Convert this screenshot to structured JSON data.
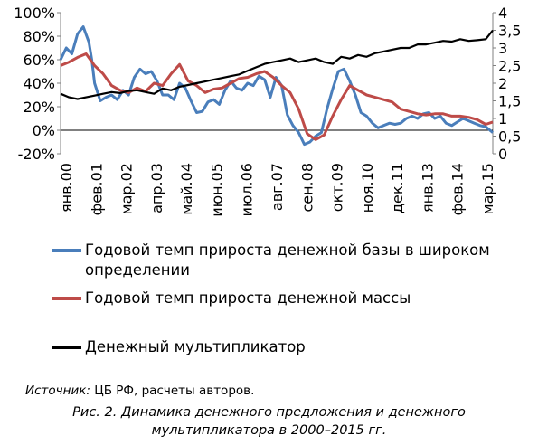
{
  "chart_data": {
    "type": "line",
    "title": "",
    "xlabel": "",
    "ylabel": "",
    "y_left_lim": [
      -20,
      100
    ],
    "y_left_ticks": [
      "100%",
      "80%",
      "60%",
      "40%",
      "20%",
      "0%",
      "-20%"
    ],
    "y_right_lim": [
      0,
      4
    ],
    "y_right_ticks": [
      "4",
      "3,5",
      "3",
      "2,5",
      "2",
      "1,5",
      "1",
      "0,5",
      "0"
    ],
    "x_range": [
      2000.0,
      2015.25
    ],
    "x_tick_labels": [
      "янв.00",
      "фев.01",
      "мар.02",
      "апр.03",
      "май.04",
      "июн.05",
      "июл.06",
      "авг.07",
      "сен.08",
      "окт.09",
      "ноя.10",
      "дек.11",
      "янв.13",
      "фев.14",
      "мар.15"
    ],
    "grid": false,
    "legend_position": "bottom",
    "series": [
      {
        "name": "Годовой темп прироста денежной базы в широком определении",
        "axis": "left",
        "color": "#4a7ebb",
        "x": [
          2000.0,
          2000.2,
          2000.4,
          2000.6,
          2000.8,
          2001.0,
          2001.1,
          2001.2,
          2001.4,
          2001.6,
          2001.8,
          2002.0,
          2002.2,
          2002.4,
          2002.6,
          2002.8,
          2003.0,
          2003.2,
          2003.4,
          2003.6,
          2003.8,
          2004.0,
          2004.2,
          2004.4,
          2004.6,
          2004.8,
          2005.0,
          2005.2,
          2005.4,
          2005.6,
          2005.8,
          2006.0,
          2006.2,
          2006.4,
          2006.6,
          2006.8,
          2007.0,
          2007.2,
          2007.4,
          2007.6,
          2007.8,
          2008.0,
          2008.2,
          2008.4,
          2008.6,
          2008.8,
          2009.0,
          2009.2,
          2009.4,
          2009.6,
          2009.8,
          2010.0,
          2010.2,
          2010.4,
          2010.6,
          2010.8,
          2011.0,
          2011.2,
          2011.4,
          2011.6,
          2011.8,
          2012.0,
          2012.2,
          2012.4,
          2012.6,
          2012.8,
          2013.0,
          2013.2,
          2013.4,
          2013.6,
          2013.8,
          2014.0,
          2014.2,
          2014.4,
          2014.6,
          2014.8,
          2015.0,
          2015.25
        ],
        "values": [
          60,
          70,
          65,
          82,
          88,
          75,
          60,
          40,
          25,
          28,
          30,
          26,
          34,
          30,
          45,
          52,
          48,
          50,
          42,
          30,
          30,
          26,
          40,
          36,
          25,
          15,
          16,
          24,
          26,
          22,
          34,
          42,
          36,
          34,
          40,
          38,
          46,
          43,
          28,
          45,
          38,
          13,
          4,
          -2,
          -12,
          -10,
          -5,
          -2,
          18,
          35,
          50,
          52,
          42,
          30,
          15,
          12,
          6,
          2,
          4,
          6,
          5,
          6,
          10,
          12,
          10,
          14,
          15,
          10,
          12,
          6,
          4,
          7,
          10,
          8,
          6,
          4,
          3,
          -2
        ]
      },
      {
        "name": "Годовой темп прироста денежной массы",
        "axis": "left",
        "color": "#be4b48",
        "x": [
          2000.0,
          2000.3,
          2000.6,
          2000.9,
          2001.2,
          2001.5,
          2001.8,
          2002.1,
          2002.4,
          2002.7,
          2003.0,
          2003.3,
          2003.6,
          2003.9,
          2004.2,
          2004.5,
          2004.8,
          2005.1,
          2005.4,
          2005.7,
          2006.0,
          2006.3,
          2006.6,
          2006.9,
          2007.2,
          2007.5,
          2007.8,
          2008.1,
          2008.4,
          2008.7,
          2009.0,
          2009.3,
          2009.6,
          2009.9,
          2010.2,
          2010.5,
          2010.8,
          2011.1,
          2011.4,
          2011.7,
          2012.0,
          2012.3,
          2012.6,
          2012.9,
          2013.2,
          2013.5,
          2013.8,
          2014.1,
          2014.4,
          2014.7,
          2015.0,
          2015.25
        ],
        "values": [
          55,
          58,
          62,
          65,
          55,
          48,
          38,
          34,
          32,
          36,
          33,
          40,
          38,
          48,
          56,
          42,
          38,
          32,
          35,
          36,
          40,
          44,
          45,
          48,
          50,
          45,
          38,
          32,
          18,
          -3,
          -8,
          -4,
          12,
          26,
          38,
          34,
          30,
          28,
          26,
          24,
          18,
          16,
          14,
          13,
          14,
          14,
          12,
          12,
          11,
          9,
          5,
          7
        ]
      },
      {
        "name": "Денежный мультипликатор",
        "axis": "right",
        "color": "#000000",
        "x": [
          2000.0,
          2000.3,
          2000.6,
          2000.9,
          2001.2,
          2001.5,
          2001.8,
          2002.1,
          2002.4,
          2002.7,
          2003.0,
          2003.3,
          2003.6,
          2003.9,
          2004.2,
          2004.5,
          2004.8,
          2005.1,
          2005.4,
          2005.7,
          2006.0,
          2006.3,
          2006.6,
          2006.9,
          2007.2,
          2007.5,
          2007.8,
          2008.1,
          2008.4,
          2008.7,
          2009.0,
          2009.3,
          2009.6,
          2009.9,
          2010.2,
          2010.5,
          2010.8,
          2011.1,
          2011.4,
          2011.7,
          2012.0,
          2012.3,
          2012.6,
          2012.9,
          2013.2,
          2013.5,
          2013.8,
          2014.1,
          2014.4,
          2014.7,
          2015.0,
          2015.25
        ],
        "values": [
          1.7,
          1.6,
          1.55,
          1.6,
          1.65,
          1.7,
          1.75,
          1.72,
          1.78,
          1.8,
          1.75,
          1.7,
          1.85,
          1.8,
          1.9,
          1.95,
          2.0,
          2.05,
          2.1,
          2.15,
          2.2,
          2.25,
          2.35,
          2.45,
          2.55,
          2.6,
          2.65,
          2.7,
          2.6,
          2.65,
          2.7,
          2.6,
          2.55,
          2.75,
          2.7,
          2.8,
          2.75,
          2.85,
          2.9,
          2.95,
          3.0,
          3.0,
          3.1,
          3.1,
          3.15,
          3.2,
          3.18,
          3.25,
          3.2,
          3.22,
          3.25,
          3.5
        ]
      }
    ]
  },
  "source": {
    "label": "Источник:",
    "text": " ЦБ РФ, расчеты авторов."
  },
  "caption": {
    "line1": "Рис. 2. Динамика денежного предложения и денежного",
    "line2": "мультипликатора в 2000–2015 гг."
  }
}
